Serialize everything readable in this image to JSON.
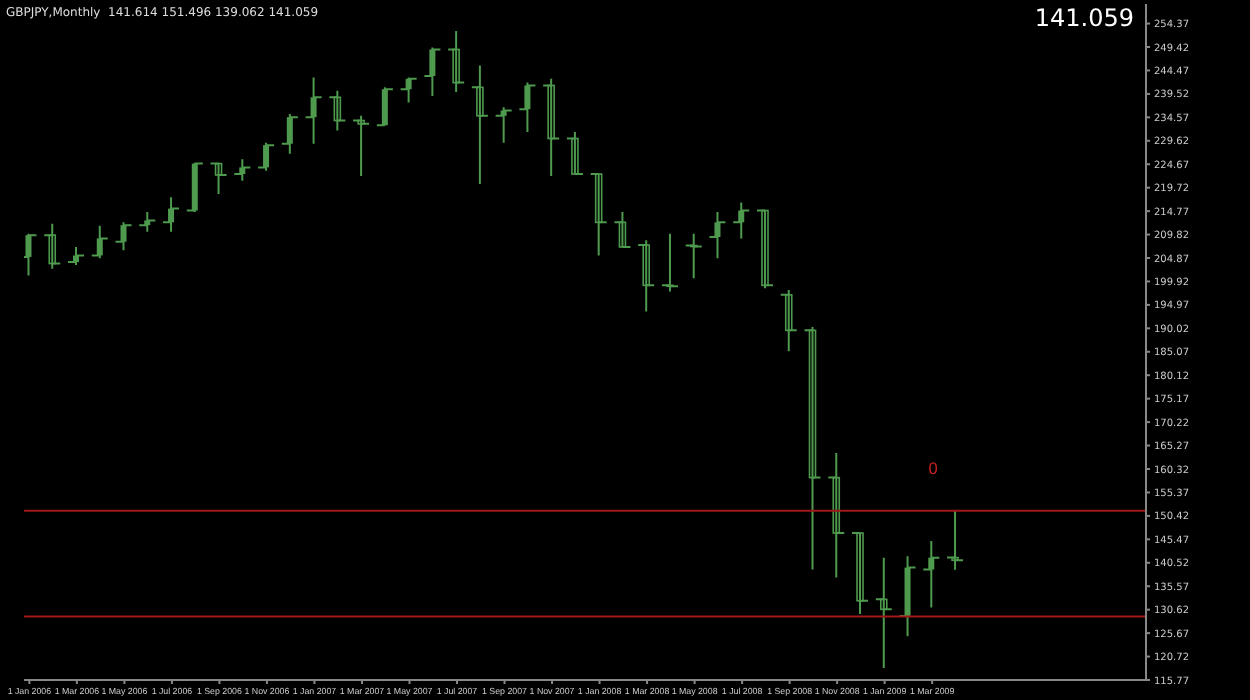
{
  "chart_data": {
    "type": "candlestick",
    "title": "GBPJPY,Monthly  141.614 151.496 139.062 141.059",
    "x": [
      "2006-01",
      "2006-02",
      "2006-03",
      "2006-04",
      "2006-05",
      "2006-06",
      "2006-07",
      "2006-08",
      "2006-09",
      "2006-10",
      "2006-11",
      "2006-12",
      "2007-01",
      "2007-02",
      "2007-03",
      "2007-04",
      "2007-05",
      "2007-06",
      "2007-07",
      "2007-08",
      "2007-09",
      "2007-10",
      "2007-11",
      "2007-12",
      "2008-01",
      "2008-02",
      "2008-03",
      "2008-04",
      "2008-05",
      "2008-06",
      "2008-07",
      "2008-08",
      "2008-09",
      "2008-10",
      "2008-11",
      "2008-12",
      "2009-01",
      "2009-02",
      "2009-03",
      "2009-04"
    ],
    "ohlc": [
      [
        205.1,
        210.0,
        201.2,
        209.7
      ],
      [
        209.7,
        212.1,
        202.6,
        203.7
      ],
      [
        204.0,
        207.2,
        203.4,
        205.4
      ],
      [
        205.4,
        211.7,
        204.8,
        209.0
      ],
      [
        208.3,
        212.4,
        206.5,
        211.8
      ],
      [
        211.8,
        214.6,
        210.4,
        212.8
      ],
      [
        212.4,
        217.7,
        210.4,
        215.3
      ],
      [
        214.9,
        225.0,
        214.6,
        224.8
      ],
      [
        224.8,
        225.0,
        218.4,
        222.4
      ],
      [
        222.6,
        225.7,
        221.2,
        224.0
      ],
      [
        224.0,
        229.2,
        223.3,
        228.7
      ],
      [
        229.0,
        235.3,
        226.9,
        234.6
      ],
      [
        234.6,
        243.0,
        229.0,
        238.8
      ],
      [
        238.8,
        240.2,
        231.8,
        233.9
      ],
      [
        233.9,
        234.9,
        222.2,
        233.2
      ],
      [
        232.9,
        240.9,
        232.9,
        240.5
      ],
      [
        240.5,
        243.0,
        237.7,
        242.7
      ],
      [
        243.3,
        249.3,
        239.1,
        248.9
      ],
      [
        248.9,
        252.8,
        239.9,
        241.9
      ],
      [
        240.9,
        245.5,
        220.5,
        234.9
      ],
      [
        234.9,
        236.7,
        229.2,
        236.0
      ],
      [
        236.3,
        241.9,
        231.5,
        241.3
      ],
      [
        241.3,
        242.7,
        222.2,
        230.1
      ],
      [
        230.1,
        231.5,
        222.6,
        222.6
      ],
      [
        222.6,
        222.6,
        205.4,
        212.4
      ],
      [
        212.4,
        214.6,
        207.2,
        207.2
      ],
      [
        207.6,
        208.6,
        193.6,
        199.1
      ],
      [
        199.1,
        210.0,
        197.8,
        198.9
      ],
      [
        207.5,
        210.0,
        200.6,
        207.3
      ],
      [
        209.3,
        214.6,
        204.8,
        212.4
      ],
      [
        212.4,
        216.6,
        209.0,
        214.9
      ],
      [
        214.9,
        214.9,
        198.5,
        199.1
      ],
      [
        197.1,
        198.1,
        185.2,
        189.6
      ],
      [
        189.6,
        190.3,
        139.1,
        158.5
      ],
      [
        158.5,
        163.7,
        137.4,
        146.8
      ],
      [
        146.8,
        146.8,
        129.7,
        132.5
      ],
      [
        132.8,
        141.6,
        118.3,
        130.7
      ],
      [
        129.3,
        141.9,
        125.0,
        139.5
      ],
      [
        139.1,
        145.1,
        131.1,
        141.6
      ],
      [
        141.614,
        151.496,
        139.062,
        141.059
      ]
    ],
    "color": "#4e9a4e",
    "xlim": [
      "2005-12-25",
      "2009-12"
    ],
    "xticks": [
      {
        "value": "2006-01",
        "label": "1 Jan 2006"
      },
      {
        "value": "2006-03",
        "label": "1 Mar 2006"
      },
      {
        "value": "2006-05",
        "label": "1 May 2006"
      },
      {
        "value": "2006-07",
        "label": "1 Jul 2006"
      },
      {
        "value": "2006-09",
        "label": "1 Sep 2006"
      },
      {
        "value": "2006-11",
        "label": "1 Nov 2006"
      },
      {
        "value": "2007-01",
        "label": "1 Jan 2007"
      },
      {
        "value": "2007-03",
        "label": "1 Mar 2007"
      },
      {
        "value": "2007-05",
        "label": "1 May 2007"
      },
      {
        "value": "2007-07",
        "label": "1 Jul 2007"
      },
      {
        "value": "2007-09",
        "label": "1 Sep 2007"
      },
      {
        "value": "2007-11",
        "label": "1 Nov 2007"
      },
      {
        "value": "2008-01",
        "label": "1 Jan 2008"
      },
      {
        "value": "2008-03",
        "label": "1 Mar 2008"
      },
      {
        "value": "2008-05",
        "label": "1 May 2008"
      },
      {
        "value": "2008-07",
        "label": "1 Jul 2008"
      },
      {
        "value": "2008-09",
        "label": "1 Sep 2008"
      },
      {
        "value": "2008-11",
        "label": "1 Nov 2008"
      },
      {
        "value": "2009-01",
        "label": "1 Jan 2009"
      },
      {
        "value": "2009-03",
        "label": "1 Mar 2009"
      }
    ],
    "ylim": [
      115.77,
      258.5
    ],
    "yticks": [
      115.77,
      120.72,
      125.67,
      130.62,
      135.57,
      140.52,
      145.47,
      150.42,
      155.37,
      160.32,
      165.27,
      170.22,
      175.17,
      180.12,
      185.07,
      190.02,
      194.97,
      199.92,
      204.87,
      209.82,
      214.77,
      219.72,
      224.67,
      229.62,
      234.57,
      239.52,
      244.47,
      249.42,
      254.37
    ],
    "ref_lines": [
      {
        "axis": "y",
        "value": 151.5,
        "color": "#a01818"
      },
      {
        "axis": "y",
        "value": 129.2,
        "color": "#a01818"
      }
    ],
    "annotations": [
      "141.059",
      "0"
    ],
    "grid": false,
    "legend": false
  }
}
